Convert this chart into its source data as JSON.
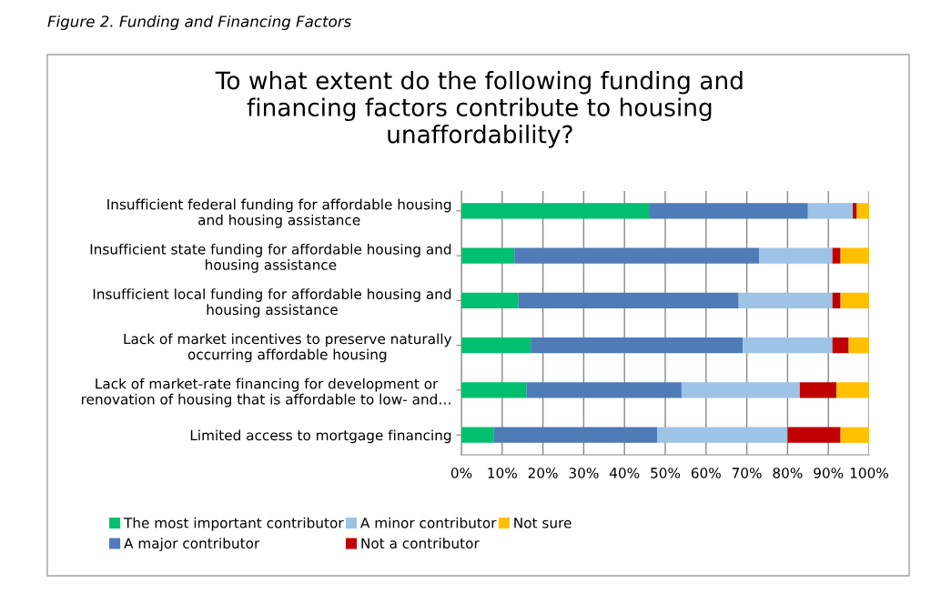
{
  "chart_data": {
    "type": "bar",
    "orientation": "horizontal",
    "stacked": true,
    "title": "To what extent do the following funding and\nfinancing factors contribute to housing\nunaffordability?",
    "annotations": [
      "Figure 2. Funding and Financing Factors"
    ],
    "categories": [
      "Insufficient federal funding for affordable housing\nand housing assistance",
      "Insufficient state funding for affordable housing and\nhousing assistance",
      "Insufficient local funding for affordable housing and\nhousing assistance",
      "Lack of market incentives to preserve naturally\noccurring affordable housing",
      "Lack of market-rate financing for development or\nrenovation of housing that is affordable to low- and…",
      "Limited access to mortgage financing"
    ],
    "series": [
      {
        "name": "The most important contributor",
        "color": "#00bf6f",
        "values": [
          46,
          13,
          14,
          17,
          16,
          8
        ]
      },
      {
        "name": "A major contributor",
        "color": "#4f7bb7",
        "values": [
          39,
          60,
          54,
          52,
          38,
          40
        ]
      },
      {
        "name": "A minor contributor",
        "color": "#9dc3e6",
        "values": [
          11,
          18,
          23,
          22,
          29,
          32
        ]
      },
      {
        "name": "Not a contributor",
        "color": "#c00000",
        "values": [
          1,
          2,
          2,
          4,
          9,
          13
        ]
      },
      {
        "name": "Not sure",
        "color": "#ffc000",
        "values": [
          3,
          7,
          7,
          5,
          8,
          7
        ]
      }
    ],
    "xlim": [
      0,
      100
    ],
    "xticks": [
      {
        "value": 0,
        "label": "0%"
      },
      {
        "value": 10,
        "label": "10%"
      },
      {
        "value": 20,
        "label": "20%"
      },
      {
        "value": 30,
        "label": "30%"
      },
      {
        "value": 40,
        "label": "40%"
      },
      {
        "value": 50,
        "label": "50%"
      },
      {
        "value": 60,
        "label": "60%"
      },
      {
        "value": 70,
        "label": "70%"
      },
      {
        "value": 80,
        "label": "80%"
      },
      {
        "value": 90,
        "label": "90%"
      },
      {
        "value": 100,
        "label": "100%"
      }
    ],
    "grid": "x",
    "legend": "bottom"
  }
}
